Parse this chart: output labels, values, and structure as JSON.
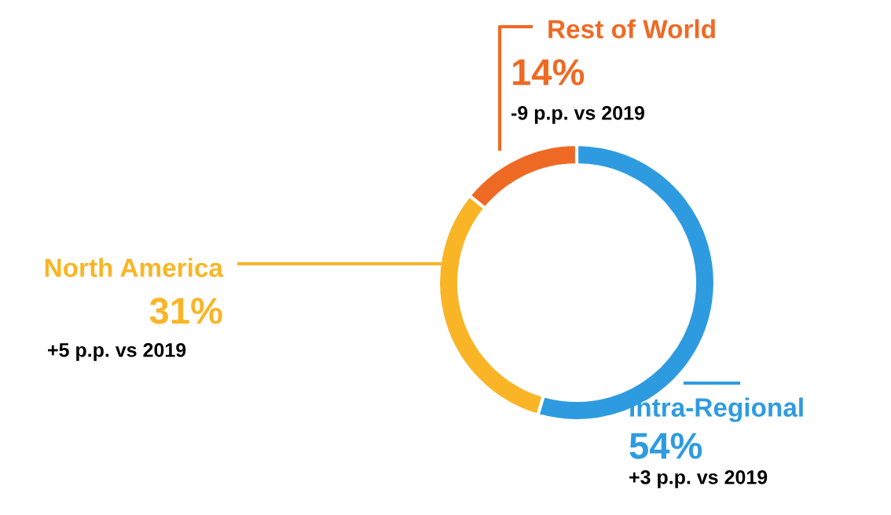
{
  "chart_data": {
    "type": "donut",
    "categories": [
      "Intra-Regional",
      "North America",
      "Rest of World"
    ],
    "values": [
      54,
      31,
      14
    ],
    "colors": [
      "#2e9be0",
      "#f9b526",
      "#ee6a24"
    ],
    "value_labels": [
      "54%",
      "31%",
      "14%"
    ],
    "annotations": [
      {
        "text": "+3 p.p. vs 2019",
        "x": "Intra-Regional"
      },
      {
        "text": "+5 p.p. vs 2019",
        "x": "North America"
      },
      {
        "text": "-9 p.p. vs 2019",
        "x": "Rest of World"
      }
    ]
  }
}
